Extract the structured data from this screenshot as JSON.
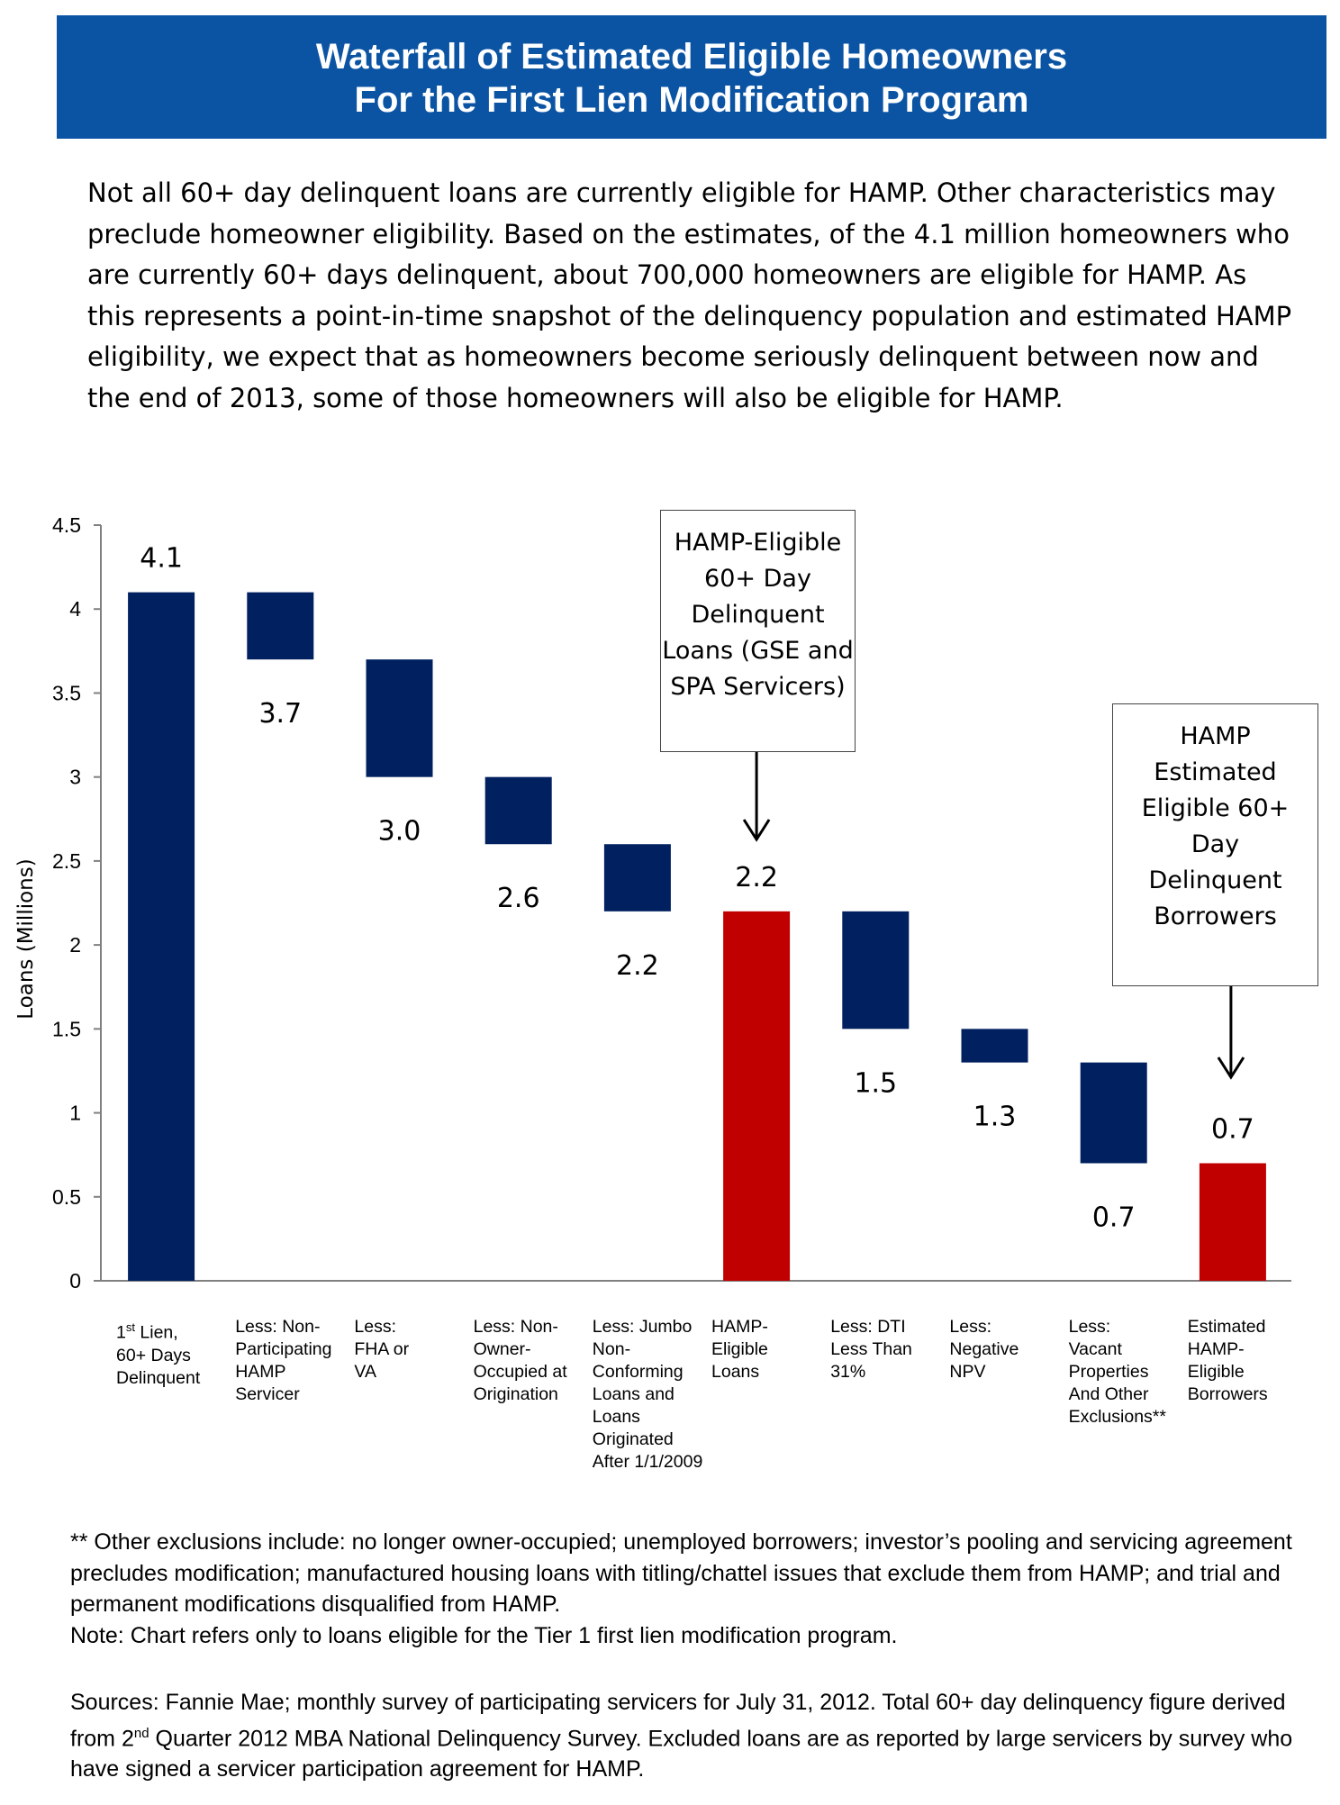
{
  "header": {
    "title_line1": "Waterfall of Estimated Eligible Homeowners",
    "title_line2": "For the First Lien Modification Program"
  },
  "intro": "Not all 60+ day delinquent loans are currently eligible for HAMP. Other characteristics may preclude homeowner eligibility. Based on the estimates, of the 4.1 million homeowners who are currently 60+ days delinquent, about 700,000 homeowners are eligible for HAMP. As this represents a point-in-time snapshot of the delinquency population and estimated HAMP eligibility, we expect that as homeowners become seriously delinquent between now and the end of 2013, some of those homeowners will also be eligible for HAMP.",
  "colors": {
    "header": "#0b54a3",
    "decrement": "#002060",
    "total": "#c00000"
  },
  "chart_data": {
    "type": "waterfall",
    "ylabel": "Loans (Millions)",
    "ylim": [
      0,
      4.5
    ],
    "yticks": [
      "0",
      "0.5",
      "1",
      "1.5",
      "2",
      "2.5",
      "3",
      "3.5",
      "4",
      "4.5"
    ],
    "grid": false,
    "bars": [
      {
        "category": "1st Lien, 60+ Days Delinquent",
        "kind": "total",
        "from": 0,
        "to": 4.1,
        "label": "4.1",
        "label_pos": "above"
      },
      {
        "category": "Less: Non-Participating HAMP Servicer",
        "kind": "decrement",
        "from": 3.7,
        "to": 4.1,
        "label": "3.7",
        "label_pos": "below"
      },
      {
        "category": "Less: FHA or VA",
        "kind": "decrement",
        "from": 3.0,
        "to": 3.7,
        "label": "3.0",
        "label_pos": "below"
      },
      {
        "category": "Less: Non-Owner-Occupied at Origination",
        "kind": "decrement",
        "from": 2.6,
        "to": 3.0,
        "label": "2.6",
        "label_pos": "below"
      },
      {
        "category": "Less: Jumbo Non-Conforming Loans and Loans Originated After 1/1/2009",
        "kind": "decrement",
        "from": 2.2,
        "to": 2.6,
        "label": "2.2",
        "label_pos": "below"
      },
      {
        "category": "HAMP-Eligible Loans",
        "kind": "subtotal",
        "from": 0,
        "to": 2.2,
        "label": "2.2",
        "label_pos": "above"
      },
      {
        "category": "Less: DTI Less Than 31%",
        "kind": "decrement",
        "from": 1.5,
        "to": 2.2,
        "label": "1.5",
        "label_pos": "below"
      },
      {
        "category": "Less: Negative NPV",
        "kind": "decrement",
        "from": 1.3,
        "to": 1.5,
        "label": "1.3",
        "label_pos": "below"
      },
      {
        "category": "Less: Vacant Properties And Other Exclusions**",
        "kind": "decrement",
        "from": 0.7,
        "to": 1.3,
        "label": "0.7",
        "label_pos": "below"
      },
      {
        "category": "Estimated HAMP-Eligible Borrowers",
        "kind": "subtotal",
        "from": 0,
        "to": 0.7,
        "label": "0.7",
        "label_pos": "above"
      }
    ],
    "xlabels": [
      "1st Lien,\n60+ Days\nDelinquent",
      "Less: Non-\nParticipating\nHAMP\nServicer",
      "Less:\nFHA or\nVA",
      "Less: Non-\nOwner-\nOccupied at\nOrigination",
      "Less: Jumbo\nNon-\nConforming\nLoans and\nLoans\nOriginated\nAfter 1/1/2009",
      "HAMP-\nEligible\nLoans",
      "Less: DTI\nLess Than\n  31%",
      "Less:\nNegative\nNPV",
      "Less:\nVacant\nProperties\nAnd Other\nExclusions**",
      "Estimated\nHAMP-\nEligible\nBorrowers"
    ],
    "annotations": [
      {
        "text": "HAMP-Eligible\n60+ Day\nDelinquent\nLoans (GSE and\nSPA Servicers)",
        "points_to": "HAMP-Eligible Loans"
      },
      {
        "text": "HAMP\nEstimated\nEligible 60+\nDay\nDelinquent\nBorrowers",
        "points_to": "Estimated HAMP-Eligible Borrowers"
      }
    ]
  },
  "footnote": {
    "line1": "** Other exclusions include: no longer owner-occupied; unemployed borrowers; investor’s pooling and servicing agreement precludes modification; manufactured housing loans with titling/chattel issues that exclude them from HAMP; and trial and permanent modifications disqualified from HAMP.",
    "line2": "Note: Chart refers only to loans eligible for the Tier 1 first lien modification program."
  },
  "sources": {
    "part1": "Sources: Fannie Mae; monthly survey of participating servicers for July 31, 2012. Total 60+ day delinquency figure derived from 2",
    "sup": "nd",
    "part2": " Quarter 2012 MBA National Delinquency Survey. Excluded loans are as reported by large servicers by survey who have signed a servicer participation agreement for HAMP."
  }
}
